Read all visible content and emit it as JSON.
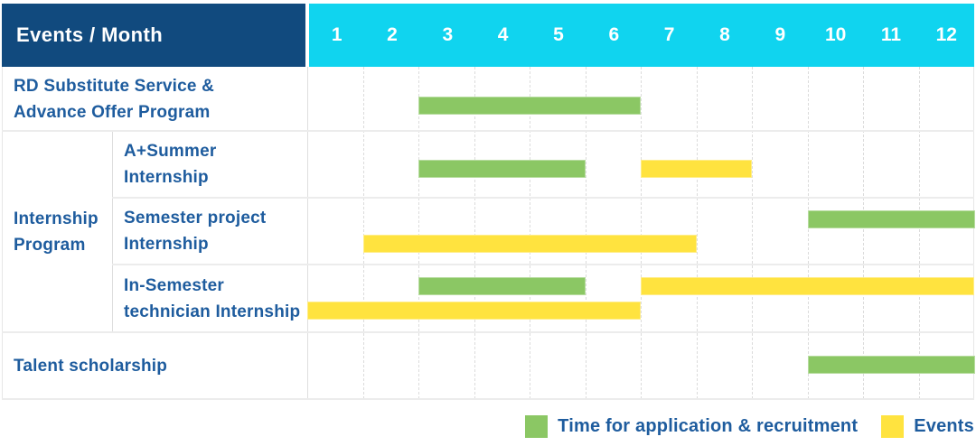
{
  "colors": {
    "header_navy": "#114A7E",
    "header_cyan": "#10D4EF",
    "application_green": "#8BC764",
    "event_yellow": "#FFE33F",
    "text_blue": "#1E5C9E"
  },
  "legend": {
    "items": [
      {
        "key": "application",
        "label": "Time for application & recruitment",
        "color": "#8BC764"
      },
      {
        "key": "event",
        "label": "Events",
        "color": "#FFE33F"
      }
    ]
  },
  "chart_data": {
    "type": "gantt",
    "corner_label": "Events / Month",
    "months": [
      "1",
      "2",
      "3",
      "4",
      "5",
      "6",
      "7",
      "8",
      "9",
      "10",
      "11",
      "12"
    ],
    "x_range": [
      1,
      12
    ],
    "bar_types": {
      "application": "Time for application & recruitment",
      "event": "Events"
    },
    "group_label": "Internship Program",
    "group_label_lines": [
      "Internship",
      "Program"
    ],
    "rows": [
      {
        "group": null,
        "label": "RD Substitute Service & Advance Offer Program",
        "label_lines": [
          "RD Substitute Service &",
          "Advance Offer Program"
        ],
        "bars": [
          {
            "type": "application",
            "start_month": 3,
            "end_month": 6,
            "lane": "center"
          }
        ]
      },
      {
        "group": "Internship Program",
        "label": "A+Summer Internship",
        "label_lines": [
          "A+Summer",
          "Internship"
        ],
        "bars": [
          {
            "type": "application",
            "start_month": 3,
            "end_month": 5,
            "lane": "center"
          },
          {
            "type": "event",
            "start_month": 7,
            "end_month": 8,
            "lane": "center"
          }
        ]
      },
      {
        "group": "Internship Program",
        "label": "Semester project Internship",
        "label_lines": [
          "Semester project",
          "Internship"
        ],
        "bars": [
          {
            "type": "application",
            "start_month": 10,
            "end_month": 12,
            "lane": "top"
          },
          {
            "type": "event",
            "start_month": 2,
            "end_month": 7,
            "lane": "bottom"
          }
        ]
      },
      {
        "group": "Internship Program",
        "label": "In-Semester technician Internship",
        "label_lines": [
          "In-Semester",
          "technician Internship"
        ],
        "bars": [
          {
            "type": "application",
            "start_month": 3,
            "end_month": 5,
            "lane": "top"
          },
          {
            "type": "event",
            "start_month": 7,
            "end_month": 12,
            "lane": "top"
          },
          {
            "type": "event",
            "start_month": 1,
            "end_month": 6,
            "lane": "bottom"
          }
        ]
      },
      {
        "group": null,
        "label": "Talent scholarship",
        "label_lines": [
          "Talent scholarship"
        ],
        "bars": [
          {
            "type": "application",
            "start_month": 10,
            "end_month": 12,
            "lane": "center"
          }
        ]
      }
    ]
  }
}
